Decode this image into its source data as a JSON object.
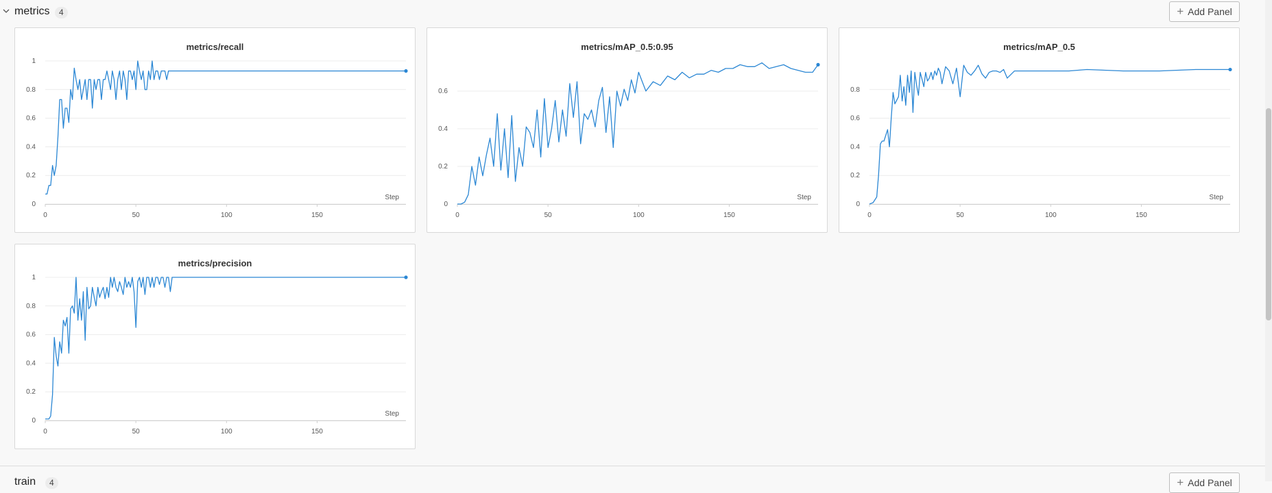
{
  "section": {
    "title": "metrics",
    "count": "4",
    "add_panel_label": "Add Panel",
    "icons": {
      "collapse": "chevron-down-icon",
      "add": "plus-icon"
    }
  },
  "next_section": {
    "title": "train",
    "count": "4",
    "add_panel_label": "Add Panel"
  },
  "line_color": "#2b87d4",
  "chart_data": [
    {
      "type": "line",
      "title": "metrics/recall",
      "xlabel": "Step",
      "ylabel": "",
      "xlim": [
        0,
        199
      ],
      "ylim": [
        0,
        1
      ],
      "xticks": [
        0,
        50,
        100,
        150
      ],
      "yticks": [
        0,
        0.2,
        0.4,
        0.6,
        0.8,
        1
      ],
      "ytick_labels": [
        "0",
        "0.2",
        "0.4",
        "0.6",
        "0.8",
        "1"
      ],
      "legend": "none",
      "grid": true,
      "series": [
        {
          "x": [
            0,
            1,
            2,
            3,
            4,
            5,
            6,
            7,
            8,
            9,
            10,
            11,
            12,
            13,
            14,
            15,
            16,
            17,
            18,
            19,
            20,
            21,
            22,
            23,
            24,
            25,
            26,
            27,
            28,
            29,
            30,
            31,
            32,
            33,
            34,
            35,
            36,
            37,
            38,
            39,
            40,
            41,
            42,
            43,
            44,
            45,
            46,
            47,
            48,
            49,
            50,
            51,
            52,
            53,
            54,
            55,
            56,
            57,
            58,
            59,
            60,
            61,
            62,
            63,
            64,
            65,
            66,
            67,
            68,
            69,
            70,
            71,
            72,
            73,
            74,
            75,
            199
          ],
          "y": [
            0.07,
            0.07,
            0.13,
            0.13,
            0.27,
            0.2,
            0.27,
            0.47,
            0.73,
            0.73,
            0.53,
            0.67,
            0.67,
            0.57,
            0.8,
            0.73,
            0.95,
            0.87,
            0.8,
            0.87,
            0.73,
            0.8,
            0.87,
            0.73,
            0.87,
            0.87,
            0.67,
            0.87,
            0.8,
            0.87,
            0.87,
            0.73,
            0.87,
            0.87,
            0.93,
            0.87,
            0.8,
            0.93,
            0.87,
            0.73,
            0.87,
            0.93,
            0.8,
            0.93,
            0.87,
            0.73,
            0.93,
            0.93,
            0.87,
            0.93,
            0.8,
            1.0,
            0.93,
            0.87,
            0.93,
            0.8,
            0.8,
            0.93,
            0.87,
            1.0,
            0.87,
            0.93,
            0.93,
            0.87,
            0.93,
            0.93,
            0.93,
            0.87,
            0.93,
            0.93,
            0.93,
            0.93,
            0.93,
            0.93,
            0.93,
            0.93,
            0.93
          ]
        }
      ]
    },
    {
      "type": "line",
      "title": "metrics/mAP_0.5:0.95",
      "xlabel": "Step",
      "ylabel": "",
      "xlim": [
        0,
        199
      ],
      "ylim": [
        0,
        0.76
      ],
      "xticks": [
        0,
        50,
        100,
        150
      ],
      "yticks": [
        0,
        0.2,
        0.4,
        0.6
      ],
      "ytick_labels": [
        "0",
        "0.2",
        "0.4",
        "0.6"
      ],
      "legend": "none",
      "grid": true,
      "series": [
        {
          "x": [
            0,
            2,
            4,
            6,
            8,
            10,
            12,
            14,
            16,
            18,
            20,
            22,
            24,
            26,
            28,
            30,
            32,
            34,
            36,
            38,
            40,
            42,
            44,
            46,
            48,
            50,
            52,
            54,
            56,
            58,
            60,
            62,
            64,
            66,
            68,
            70,
            72,
            74,
            76,
            78,
            80,
            82,
            84,
            86,
            88,
            90,
            92,
            94,
            96,
            98,
            100,
            104,
            108,
            112,
            116,
            120,
            124,
            128,
            132,
            136,
            140,
            144,
            148,
            152,
            156,
            160,
            164,
            168,
            172,
            176,
            180,
            184,
            188,
            192,
            196,
            199
          ],
          "y": [
            0.0,
            0.0,
            0.01,
            0.05,
            0.2,
            0.1,
            0.25,
            0.15,
            0.26,
            0.35,
            0.2,
            0.48,
            0.18,
            0.4,
            0.14,
            0.47,
            0.12,
            0.3,
            0.2,
            0.41,
            0.38,
            0.3,
            0.5,
            0.25,
            0.56,
            0.3,
            0.4,
            0.55,
            0.33,
            0.5,
            0.36,
            0.64,
            0.46,
            0.65,
            0.32,
            0.48,
            0.45,
            0.5,
            0.41,
            0.55,
            0.62,
            0.38,
            0.57,
            0.3,
            0.6,
            0.52,
            0.61,
            0.55,
            0.66,
            0.59,
            0.7,
            0.6,
            0.65,
            0.63,
            0.68,
            0.66,
            0.7,
            0.67,
            0.69,
            0.69,
            0.71,
            0.7,
            0.72,
            0.72,
            0.74,
            0.73,
            0.73,
            0.75,
            0.72,
            0.73,
            0.74,
            0.72,
            0.71,
            0.7,
            0.7,
            0.74
          ]
        }
      ]
    },
    {
      "type": "line",
      "title": "metrics/mAP_0.5",
      "xlabel": "Step",
      "ylabel": "",
      "xlim": [
        0,
        199
      ],
      "ylim": [
        0,
        1
      ],
      "xticks": [
        0,
        50,
        100,
        150
      ],
      "yticks": [
        0,
        0.2,
        0.4,
        0.6,
        0.8
      ],
      "ytick_labels": [
        "0",
        "0.2",
        "0.4",
        "0.6",
        "0.8"
      ],
      "legend": "none",
      "grid": true,
      "series": [
        {
          "x": [
            0,
            2,
            4,
            5,
            6,
            7,
            8,
            10,
            11,
            12,
            13,
            14,
            16,
            17,
            18,
            19,
            20,
            21,
            22,
            23,
            24,
            25,
            26,
            27,
            28,
            29,
            30,
            31,
            32,
            33,
            34,
            35,
            36,
            37,
            38,
            39,
            40,
            42,
            44,
            46,
            48,
            50,
            52,
            54,
            56,
            58,
            60,
            62,
            64,
            66,
            68,
            70,
            72,
            74,
            76,
            80,
            90,
            100,
            110,
            120,
            140,
            160,
            180,
            199
          ],
          "y": [
            0.0,
            0.01,
            0.05,
            0.2,
            0.42,
            0.44,
            0.44,
            0.52,
            0.4,
            0.6,
            0.78,
            0.7,
            0.75,
            0.9,
            0.72,
            0.82,
            0.69,
            0.9,
            0.78,
            0.93,
            0.64,
            0.92,
            0.83,
            0.76,
            0.92,
            0.87,
            0.82,
            0.92,
            0.86,
            0.88,
            0.92,
            0.87,
            0.93,
            0.9,
            0.95,
            0.92,
            0.84,
            0.96,
            0.93,
            0.84,
            0.95,
            0.75,
            0.97,
            0.92,
            0.9,
            0.93,
            0.97,
            0.91,
            0.88,
            0.92,
            0.93,
            0.93,
            0.92,
            0.94,
            0.88,
            0.93,
            0.93,
            0.93,
            0.93,
            0.94,
            0.93,
            0.93,
            0.94,
            0.94
          ]
        }
      ]
    },
    {
      "type": "line",
      "title": "metrics/precision",
      "xlabel": "Step",
      "ylabel": "",
      "xlim": [
        0,
        199
      ],
      "ylim": [
        0,
        1
      ],
      "xticks": [
        0,
        50,
        100,
        150
      ],
      "yticks": [
        0,
        0.2,
        0.4,
        0.6,
        0.8,
        1
      ],
      "ytick_labels": [
        "0",
        "0.2",
        "0.4",
        "0.6",
        "0.8",
        "1"
      ],
      "legend": "none",
      "grid": true,
      "series": [
        {
          "x": [
            0,
            2,
            3,
            4,
            5,
            6,
            7,
            8,
            9,
            10,
            11,
            12,
            13,
            14,
            15,
            16,
            17,
            18,
            19,
            20,
            21,
            22,
            23,
            24,
            25,
            26,
            27,
            28,
            29,
            30,
            31,
            32,
            33,
            34,
            35,
            36,
            37,
            38,
            39,
            40,
            41,
            42,
            43,
            44,
            45,
            46,
            47,
            48,
            49,
            50,
            51,
            52,
            53,
            54,
            55,
            56,
            57,
            58,
            59,
            60,
            61,
            62,
            63,
            64,
            65,
            66,
            67,
            68,
            69,
            70,
            71,
            72,
            73,
            74,
            75,
            199
          ],
          "y": [
            0.01,
            0.01,
            0.03,
            0.18,
            0.58,
            0.45,
            0.38,
            0.55,
            0.47,
            0.7,
            0.66,
            0.72,
            0.47,
            0.78,
            0.8,
            0.75,
            1.0,
            0.7,
            0.85,
            0.7,
            0.9,
            0.56,
            0.93,
            0.78,
            0.8,
            0.93,
            0.86,
            0.8,
            0.93,
            0.86,
            0.9,
            0.93,
            0.85,
            0.93,
            0.86,
            1.0,
            0.93,
            1.0,
            0.93,
            0.9,
            0.97,
            0.93,
            0.88,
            1.0,
            0.93,
            0.97,
            0.93,
            1.0,
            0.9,
            0.65,
            0.97,
            1.0,
            0.93,
            1.0,
            0.88,
            1.0,
            1.0,
            0.93,
            1.0,
            0.93,
            1.0,
            1.0,
            0.95,
            1.0,
            1.0,
            0.93,
            1.0,
            1.0,
            0.9,
            1.0,
            1.0,
            1.0,
            1.0,
            1.0,
            1.0,
            1.0
          ]
        }
      ]
    }
  ]
}
